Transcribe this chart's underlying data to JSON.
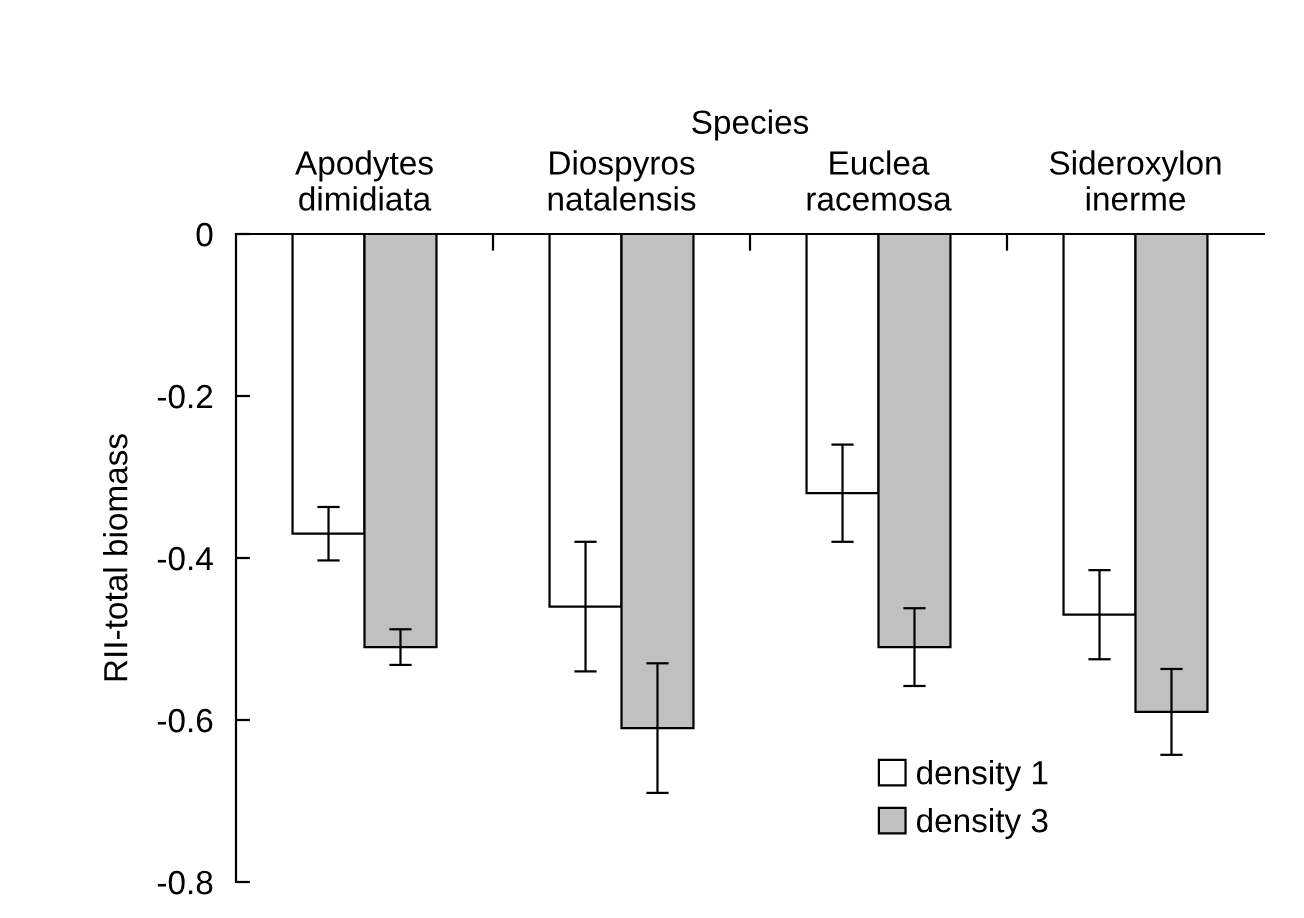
{
  "chart_data": {
    "type": "bar",
    "xlabel": "Species",
    "ylabel": "RII-total biomass",
    "categories": [
      "Apodytes\ndimidiata",
      "Diospyros\nnatalensis",
      "Euclea\nracemosa",
      "Sideroxylon\ninerme"
    ],
    "series": [
      {
        "name": "density 1",
        "color": "#ffffff",
        "values": [
          -0.37,
          -0.46,
          -0.32,
          -0.47
        ],
        "errors": [
          0.033,
          0.08,
          0.06,
          0.055
        ]
      },
      {
        "name": "density 3",
        "color": "#c0c0c0",
        "values": [
          -0.51,
          -0.61,
          -0.51,
          -0.59
        ],
        "errors": [
          0.022,
          0.08,
          0.048,
          0.053
        ]
      }
    ],
    "ylim": [
      -0.8,
      0
    ],
    "yticks": [
      {
        "value": 0,
        "label": "0"
      },
      {
        "value": -0.2,
        "label": "-0.2"
      },
      {
        "value": -0.4,
        "label": "-0.4"
      },
      {
        "value": -0.6,
        "label": "-0.6"
      },
      {
        "value": -0.8,
        "label": "-0.8"
      }
    ],
    "grid": false,
    "legend": "bottom right"
  }
}
